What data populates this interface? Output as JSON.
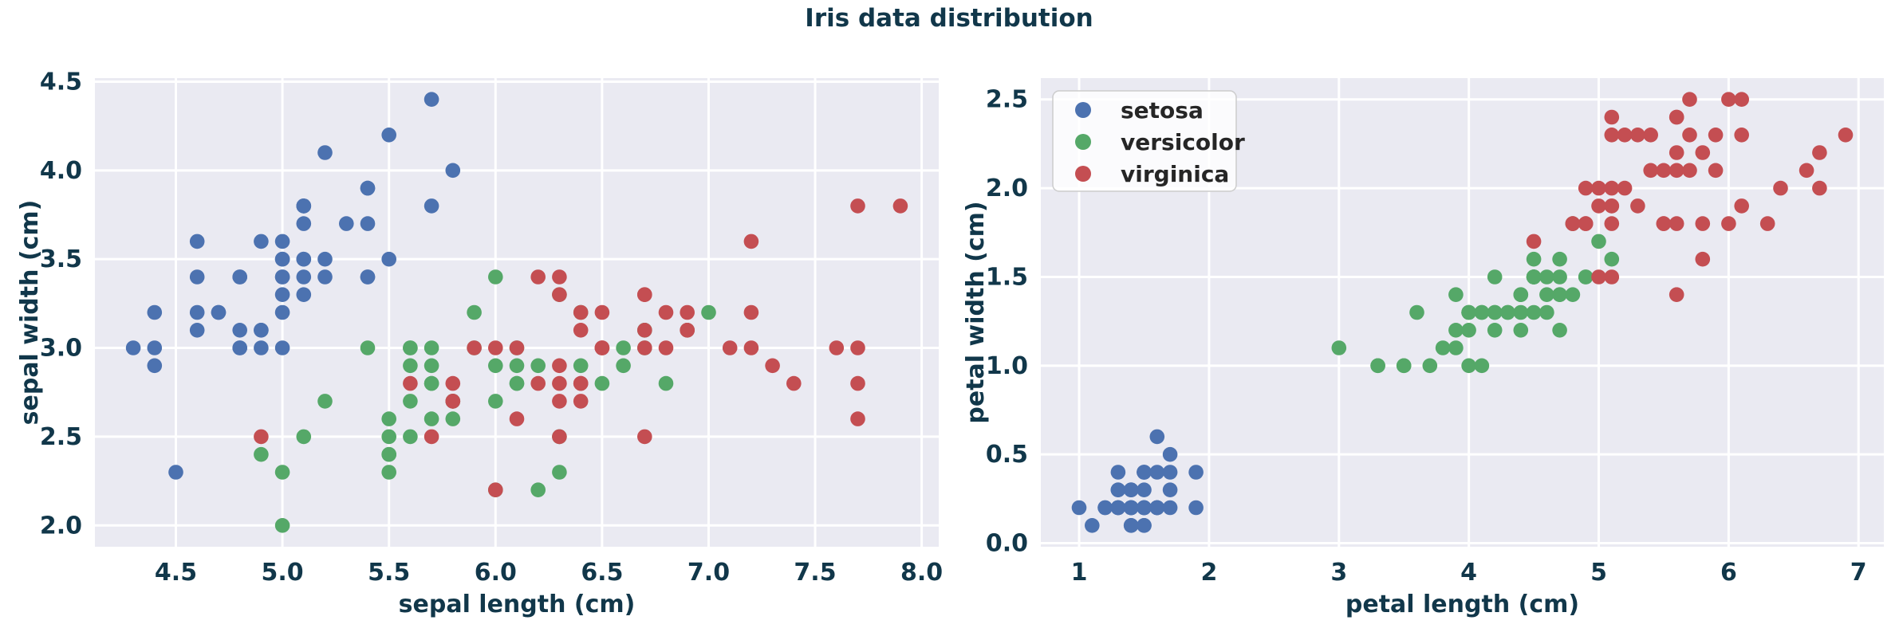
{
  "figure": {
    "background": "#ffffff"
  },
  "chart_data": {
    "type": "scatter",
    "suptitle": "Iris data distribution",
    "text_color": "#11374a",
    "axes_background": "#eaeaf2",
    "grid_color": "#ffffff",
    "legend_entries": [
      "setosa",
      "versicolor",
      "virginica"
    ],
    "legend_position": "upper left of second plot",
    "dataset_columns": [
      "sepal length (cm)",
      "sepal width (cm)",
      "petal length (cm)",
      "petal width (cm)"
    ],
    "series": [
      {
        "name": "setosa",
        "color": "#4c72b0",
        "samples": [
          [
            5.1,
            3.5,
            1.4,
            0.2
          ],
          [
            4.9,
            3.0,
            1.4,
            0.2
          ],
          [
            4.7,
            3.2,
            1.3,
            0.2
          ],
          [
            4.6,
            3.1,
            1.5,
            0.2
          ],
          [
            5.0,
            3.6,
            1.4,
            0.2
          ],
          [
            5.4,
            3.9,
            1.7,
            0.4
          ],
          [
            4.6,
            3.4,
            1.4,
            0.3
          ],
          [
            5.0,
            3.4,
            1.5,
            0.2
          ],
          [
            4.4,
            2.9,
            1.4,
            0.2
          ],
          [
            4.9,
            3.1,
            1.5,
            0.1
          ],
          [
            5.4,
            3.7,
            1.5,
            0.2
          ],
          [
            4.8,
            3.4,
            1.6,
            0.2
          ],
          [
            4.8,
            3.0,
            1.4,
            0.1
          ],
          [
            4.3,
            3.0,
            1.1,
            0.1
          ],
          [
            5.8,
            4.0,
            1.2,
            0.2
          ],
          [
            5.7,
            4.4,
            1.5,
            0.4
          ],
          [
            5.4,
            3.9,
            1.3,
            0.4
          ],
          [
            5.1,
            3.5,
            1.4,
            0.3
          ],
          [
            5.7,
            3.8,
            1.7,
            0.3
          ],
          [
            5.1,
            3.8,
            1.5,
            0.3
          ],
          [
            5.4,
            3.4,
            1.7,
            0.2
          ],
          [
            5.1,
            3.7,
            1.5,
            0.4
          ],
          [
            4.6,
            3.6,
            1.0,
            0.2
          ],
          [
            5.1,
            3.3,
            1.7,
            0.5
          ],
          [
            4.8,
            3.4,
            1.9,
            0.2
          ],
          [
            5.0,
            3.0,
            1.6,
            0.2
          ],
          [
            5.0,
            3.4,
            1.6,
            0.4
          ],
          [
            5.2,
            3.5,
            1.5,
            0.2
          ],
          [
            5.2,
            3.4,
            1.4,
            0.2
          ],
          [
            4.7,
            3.2,
            1.6,
            0.2
          ],
          [
            4.8,
            3.1,
            1.6,
            0.2
          ],
          [
            5.4,
            3.4,
            1.5,
            0.4
          ],
          [
            5.2,
            4.1,
            1.5,
            0.1
          ],
          [
            5.5,
            4.2,
            1.4,
            0.2
          ],
          [
            4.9,
            3.1,
            1.5,
            0.2
          ],
          [
            5.0,
            3.2,
            1.2,
            0.2
          ],
          [
            5.5,
            3.5,
            1.3,
            0.2
          ],
          [
            4.9,
            3.6,
            1.4,
            0.1
          ],
          [
            4.4,
            3.0,
            1.3,
            0.2
          ],
          [
            5.1,
            3.4,
            1.5,
            0.2
          ],
          [
            5.0,
            3.5,
            1.3,
            0.3
          ],
          [
            4.5,
            2.3,
            1.3,
            0.3
          ],
          [
            4.4,
            3.2,
            1.3,
            0.2
          ],
          [
            5.0,
            3.5,
            1.6,
            0.6
          ],
          [
            5.1,
            3.8,
            1.9,
            0.4
          ],
          [
            4.8,
            3.0,
            1.4,
            0.3
          ],
          [
            5.1,
            3.8,
            1.6,
            0.2
          ],
          [
            4.6,
            3.2,
            1.4,
            0.2
          ],
          [
            5.3,
            3.7,
            1.5,
            0.2
          ],
          [
            5.0,
            3.3,
            1.4,
            0.2
          ]
        ]
      },
      {
        "name": "versicolor",
        "color": "#55a868",
        "samples": [
          [
            7.0,
            3.2,
            4.7,
            1.4
          ],
          [
            6.4,
            3.2,
            4.5,
            1.5
          ],
          [
            6.9,
            3.1,
            4.9,
            1.5
          ],
          [
            5.5,
            2.3,
            4.0,
            1.3
          ],
          [
            6.5,
            2.8,
            4.6,
            1.5
          ],
          [
            5.7,
            2.8,
            4.5,
            1.3
          ],
          [
            6.3,
            3.3,
            4.7,
            1.6
          ],
          [
            4.9,
            2.4,
            3.3,
            1.0
          ],
          [
            6.6,
            2.9,
            4.6,
            1.3
          ],
          [
            5.2,
            2.7,
            3.9,
            1.4
          ],
          [
            5.0,
            2.0,
            3.5,
            1.0
          ],
          [
            5.9,
            3.0,
            4.2,
            1.5
          ],
          [
            6.0,
            2.2,
            4.0,
            1.0
          ],
          [
            6.1,
            2.9,
            4.7,
            1.4
          ],
          [
            5.6,
            2.9,
            3.6,
            1.3
          ],
          [
            6.7,
            3.1,
            4.4,
            1.4
          ],
          [
            5.6,
            3.0,
            4.5,
            1.5
          ],
          [
            5.8,
            2.7,
            4.1,
            1.0
          ],
          [
            6.2,
            2.2,
            4.5,
            1.5
          ],
          [
            5.6,
            2.5,
            3.9,
            1.1
          ],
          [
            5.9,
            3.2,
            4.8,
            1.8
          ],
          [
            6.1,
            2.8,
            4.0,
            1.3
          ],
          [
            6.3,
            2.5,
            4.9,
            1.5
          ],
          [
            6.1,
            2.8,
            4.7,
            1.2
          ],
          [
            6.4,
            2.9,
            4.3,
            1.3
          ],
          [
            6.6,
            3.0,
            4.4,
            1.4
          ],
          [
            6.8,
            2.8,
            4.8,
            1.4
          ],
          [
            6.7,
            3.0,
            5.0,
            1.7
          ],
          [
            6.0,
            2.9,
            4.5,
            1.5
          ],
          [
            5.7,
            2.6,
            3.5,
            1.0
          ],
          [
            5.5,
            2.4,
            3.8,
            1.1
          ],
          [
            5.5,
            2.4,
            3.7,
            1.0
          ],
          [
            5.8,
            2.7,
            3.9,
            1.2
          ],
          [
            6.0,
            2.7,
            5.1,
            1.6
          ],
          [
            5.4,
            3.0,
            4.5,
            1.5
          ],
          [
            6.0,
            3.4,
            4.5,
            1.6
          ],
          [
            6.7,
            3.1,
            4.7,
            1.5
          ],
          [
            6.3,
            2.3,
            4.4,
            1.3
          ],
          [
            5.6,
            3.0,
            4.1,
            1.3
          ],
          [
            5.5,
            2.5,
            4.0,
            1.3
          ],
          [
            5.5,
            2.6,
            4.4,
            1.2
          ],
          [
            6.1,
            3.0,
            4.6,
            1.4
          ],
          [
            5.8,
            2.6,
            4.0,
            1.2
          ],
          [
            5.0,
            2.3,
            3.3,
            1.0
          ],
          [
            5.6,
            2.7,
            4.2,
            1.3
          ],
          [
            5.7,
            3.0,
            4.2,
            1.2
          ],
          [
            5.7,
            2.9,
            4.2,
            1.3
          ],
          [
            6.2,
            2.9,
            4.3,
            1.3
          ],
          [
            5.1,
            2.5,
            3.0,
            1.1
          ],
          [
            5.7,
            2.8,
            4.1,
            1.3
          ]
        ]
      },
      {
        "name": "virginica",
        "color": "#c44e52",
        "samples": [
          [
            6.3,
            3.3,
            6.0,
            2.5
          ],
          [
            5.8,
            2.7,
            5.1,
            1.9
          ],
          [
            7.1,
            3.0,
            5.9,
            2.1
          ],
          [
            6.3,
            2.9,
            5.6,
            1.8
          ],
          [
            6.5,
            3.0,
            5.8,
            2.2
          ],
          [
            7.6,
            3.0,
            6.6,
            2.1
          ],
          [
            4.9,
            2.5,
            4.5,
            1.7
          ],
          [
            7.3,
            2.9,
            6.3,
            1.8
          ],
          [
            6.7,
            2.5,
            5.8,
            1.8
          ],
          [
            7.2,
            3.6,
            6.1,
            2.5
          ],
          [
            6.5,
            3.2,
            5.1,
            2.0
          ],
          [
            6.4,
            2.7,
            5.3,
            1.9
          ],
          [
            6.8,
            3.0,
            5.5,
            2.1
          ],
          [
            5.7,
            2.5,
            5.0,
            2.0
          ],
          [
            5.8,
            2.8,
            5.1,
            2.4
          ],
          [
            6.4,
            3.2,
            5.3,
            2.3
          ],
          [
            6.5,
            3.0,
            5.5,
            1.8
          ],
          [
            7.7,
            3.8,
            6.7,
            2.2
          ],
          [
            7.7,
            2.6,
            6.9,
            2.3
          ],
          [
            6.0,
            2.2,
            5.0,
            1.5
          ],
          [
            6.9,
            3.2,
            5.7,
            2.3
          ],
          [
            5.6,
            2.8,
            4.9,
            2.0
          ],
          [
            7.7,
            2.8,
            6.7,
            2.0
          ],
          [
            6.3,
            2.7,
            4.9,
            1.8
          ],
          [
            6.7,
            3.3,
            5.7,
            2.1
          ],
          [
            7.2,
            3.2,
            6.0,
            1.8
          ],
          [
            6.2,
            2.8,
            4.8,
            1.8
          ],
          [
            6.1,
            3.0,
            4.9,
            1.8
          ],
          [
            6.4,
            2.8,
            5.6,
            2.1
          ],
          [
            7.2,
            3.0,
            5.8,
            1.6
          ],
          [
            7.4,
            2.8,
            6.1,
            1.9
          ],
          [
            7.9,
            3.8,
            6.4,
            2.0
          ],
          [
            6.4,
            2.8,
            5.6,
            2.2
          ],
          [
            6.3,
            2.8,
            5.1,
            1.5
          ],
          [
            6.1,
            2.6,
            5.6,
            1.4
          ],
          [
            7.7,
            3.0,
            6.1,
            2.3
          ],
          [
            6.3,
            3.4,
            5.6,
            2.4
          ],
          [
            6.4,
            3.1,
            5.5,
            1.8
          ],
          [
            6.0,
            3.0,
            4.8,
            1.8
          ],
          [
            6.9,
            3.1,
            5.4,
            2.1
          ],
          [
            6.7,
            3.1,
            5.6,
            2.4
          ],
          [
            6.9,
            3.1,
            5.1,
            2.3
          ],
          [
            5.8,
            2.7,
            5.1,
            1.9
          ],
          [
            6.8,
            3.2,
            5.9,
            2.3
          ],
          [
            6.7,
            3.3,
            5.7,
            2.5
          ],
          [
            6.7,
            3.0,
            5.2,
            2.3
          ],
          [
            6.3,
            2.5,
            5.0,
            1.9
          ],
          [
            6.5,
            3.0,
            5.2,
            2.0
          ],
          [
            6.2,
            3.4,
            5.4,
            2.3
          ],
          [
            5.9,
            3.0,
            5.1,
            1.8
          ]
        ]
      }
    ],
    "plots": [
      {
        "xlabel": "sepal length (cm)",
        "ylabel": "sepal width (cm)",
        "x_col": 0,
        "y_col": 1,
        "xlim": [
          4.12,
          8.08
        ],
        "ylim": [
          1.88,
          4.52
        ],
        "xticks": [
          4.5,
          5.0,
          5.5,
          6.0,
          6.5,
          7.0,
          7.5,
          8.0
        ],
        "xtick_labels": [
          "4.5",
          "5.0",
          "5.5",
          "6.0",
          "6.5",
          "7.0",
          "7.5",
          "8.0"
        ],
        "yticks": [
          2.0,
          2.5,
          3.0,
          3.5,
          4.0,
          4.5
        ],
        "ytick_labels": [
          "2.0",
          "2.5",
          "3.0",
          "3.5",
          "4.0",
          "4.5"
        ],
        "grid": true,
        "legend": false
      },
      {
        "xlabel": "petal length (cm)",
        "ylabel": "petal width (cm)",
        "x_col": 2,
        "y_col": 3,
        "xlim": [
          0.705,
          7.195
        ],
        "ylim": [
          -0.02,
          2.62
        ],
        "xticks": [
          1,
          2,
          3,
          4,
          5,
          6,
          7
        ],
        "xtick_labels": [
          "1",
          "2",
          "3",
          "4",
          "5",
          "6",
          "7"
        ],
        "yticks": [
          0.0,
          0.5,
          1.0,
          1.5,
          2.0,
          2.5
        ],
        "ytick_labels": [
          "0.0",
          "0.5",
          "1.0",
          "1.5",
          "2.0",
          "2.5"
        ],
        "grid": true,
        "legend": true
      }
    ]
  }
}
